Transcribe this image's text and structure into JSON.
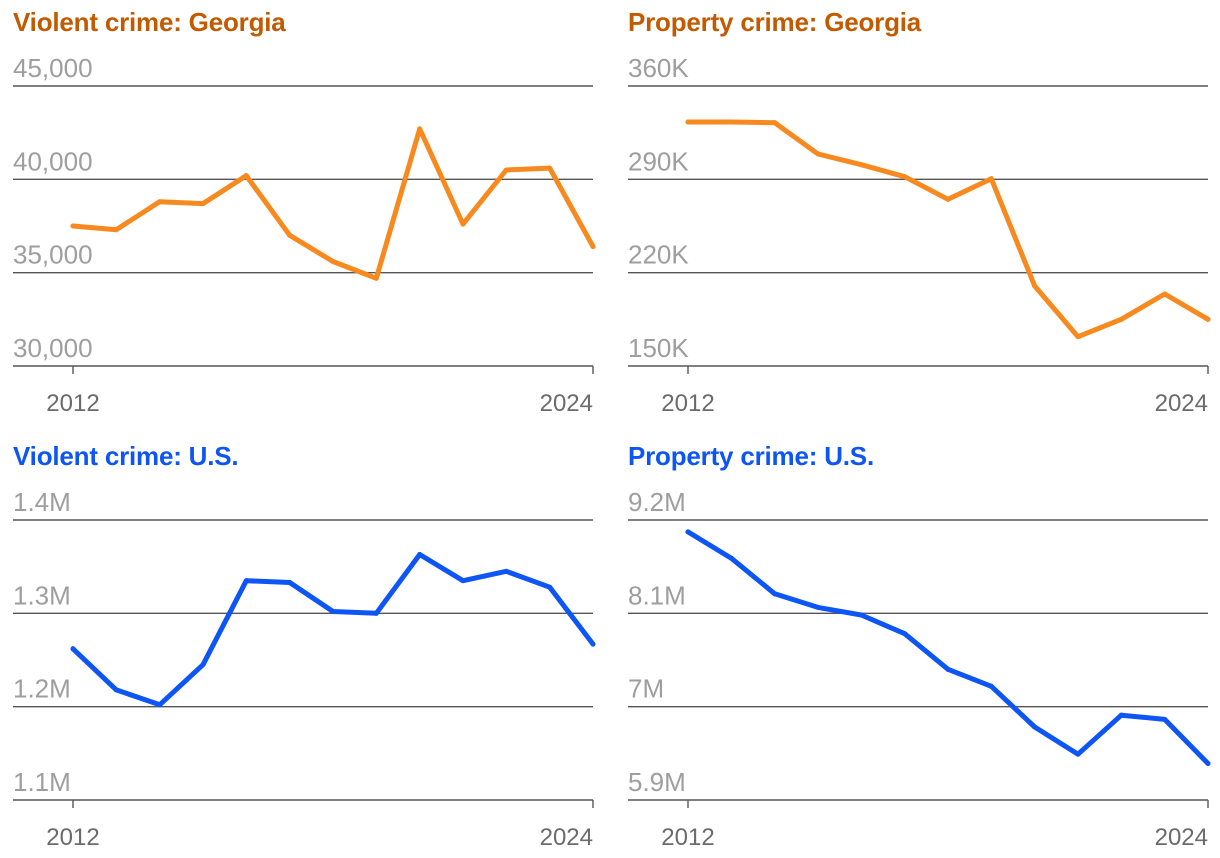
{
  "colors": {
    "georgia": "#F7891F",
    "georgia_title": "#C25A00",
    "us": "#0D55F5",
    "us_title": "#0D55F5",
    "gridline": "#555555",
    "tick_text": "#9e9e9e",
    "axis_text": "#6b6b6b"
  },
  "chart_data": [
    {
      "type": "line",
      "title": "Violent crime: Georgia",
      "series_color": "georgia",
      "title_color": "georgia_title",
      "x": [
        2012,
        2013,
        2014,
        2015,
        2016,
        2017,
        2018,
        2019,
        2020,
        2021,
        2022,
        2023,
        2024
      ],
      "values": [
        37500,
        37300,
        38800,
        38700,
        40200,
        37000,
        35600,
        34700,
        42700,
        37600,
        40500,
        40600,
        36400
      ],
      "yticks": [
        30000,
        35000,
        40000,
        45000
      ],
      "ytick_labels": [
        "30,000",
        "35,000",
        "40,000",
        "45,000"
      ],
      "ylim": [
        30000,
        45000
      ],
      "xtick_labels": [
        "2012",
        "2024"
      ]
    },
    {
      "type": "line",
      "title": "Property crime: Georgia",
      "series_color": "georgia",
      "title_color": "georgia_title",
      "x": [
        2012,
        2013,
        2014,
        2015,
        2016,
        2017,
        2018,
        2019,
        2020,
        2021,
        2022,
        2023,
        2024
      ],
      "values": [
        333000,
        333000,
        332500,
        309000,
        301000,
        292000,
        275000,
        290500,
        210000,
        172000,
        185000,
        204000,
        185000
      ],
      "yticks": [
        150000,
        220000,
        290000,
        360000
      ],
      "ytick_labels": [
        "150K",
        "220K",
        "290K",
        "360K"
      ],
      "ylim": [
        150000,
        360000
      ],
      "xtick_labels": [
        "2012",
        "2024"
      ]
    },
    {
      "type": "line",
      "title": "Violent crime: U.S.",
      "series_color": "us",
      "title_color": "us_title",
      "x": [
        2012,
        2013,
        2014,
        2015,
        2016,
        2017,
        2018,
        2019,
        2020,
        2021,
        2022,
        2023,
        2024
      ],
      "values": [
        1262000,
        1218000,
        1202000,
        1245000,
        1335000,
        1333000,
        1302000,
        1300000,
        1363000,
        1335000,
        1345000,
        1328000,
        1267000
      ],
      "yticks": [
        1100000,
        1200000,
        1300000,
        1400000
      ],
      "ytick_labels": [
        "1.1M",
        "1.2M",
        "1.3M",
        "1.4M"
      ],
      "ylim": [
        1100000,
        1400000
      ],
      "xtick_labels": [
        "2012",
        "2024"
      ]
    },
    {
      "type": "line",
      "title": "Property crime: U.S.",
      "series_color": "us",
      "title_color": "us_title",
      "x": [
        2012,
        2013,
        2014,
        2015,
        2016,
        2017,
        2018,
        2019,
        2020,
        2021,
        2022,
        2023,
        2024
      ],
      "values": [
        9060000,
        8750000,
        8330000,
        8170000,
        8080000,
        7860000,
        7440000,
        7240000,
        6760000,
        6440000,
        6900000,
        6850000,
        6330000
      ],
      "yticks": [
        5900000,
        7000000,
        8100000,
        9200000
      ],
      "ytick_labels": [
        "5.9M",
        "7M",
        "8.1M",
        "9.2M"
      ],
      "ylim": [
        5900000,
        9200000
      ],
      "xtick_labels": [
        "2012",
        "2024"
      ]
    }
  ]
}
